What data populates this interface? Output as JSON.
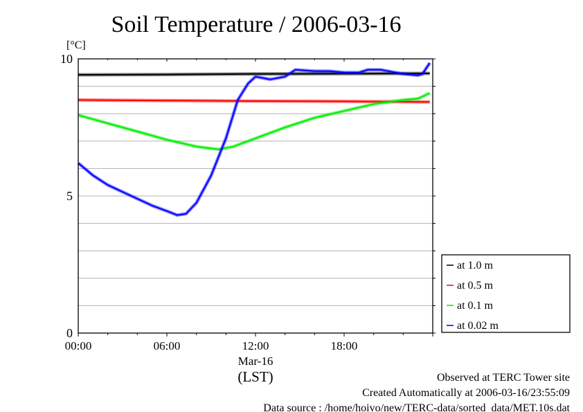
{
  "chart_data": {
    "type": "line",
    "title": "Soil Temperature / 2006-03-16",
    "ylabel": "[°C]",
    "xlabel": "(LST)",
    "date_label": "Mar-16",
    "xlim": [
      0,
      24
    ],
    "ylim": [
      0,
      10
    ],
    "x_ticks": [
      {
        "v": 0,
        "label": "00:00"
      },
      {
        "v": 6,
        "label": "06:00"
      },
      {
        "v": 12,
        "label": "12:00"
      },
      {
        "v": 18,
        "label": "18:00"
      }
    ],
    "y_ticks": [
      {
        "v": 0,
        "label": "0"
      },
      {
        "v": 5,
        "label": "5"
      },
      {
        "v": 10,
        "label": "10"
      }
    ],
    "grid": true,
    "legend_position": "right-bottom-outside",
    "series": [
      {
        "name": "at 1.0 m",
        "color": "#000000",
        "x": [
          0,
          6,
          12,
          18,
          23.8
        ],
        "y": [
          9.42,
          9.43,
          9.45,
          9.46,
          9.47
        ]
      },
      {
        "name": "at 0.5 m",
        "color": "#ff0000",
        "x": [
          0,
          6,
          12,
          18,
          23.8
        ],
        "y": [
          8.5,
          8.48,
          8.46,
          8.45,
          8.43
        ]
      },
      {
        "name": "at 0.1 m",
        "color": "#00ee00",
        "x": [
          0,
          2,
          4,
          6,
          8,
          9.5,
          10.5,
          12,
          14,
          16,
          18,
          20,
          22,
          23,
          23.8
        ],
        "y": [
          7.95,
          7.65,
          7.35,
          7.05,
          6.8,
          6.7,
          6.8,
          7.1,
          7.5,
          7.85,
          8.1,
          8.35,
          8.5,
          8.55,
          8.75
        ]
      },
      {
        "name": "at 0.02 m",
        "color": "#0000ff",
        "x": [
          0,
          1,
          2,
          3,
          4,
          5,
          6,
          6.7,
          7.3,
          8,
          9,
          10,
          10.8,
          11.5,
          12,
          13,
          14,
          14.7,
          16,
          17,
          18,
          19,
          19.6,
          20.5,
          22,
          23,
          23.3,
          23.8
        ],
        "y": [
          6.2,
          5.75,
          5.4,
          5.15,
          4.9,
          4.65,
          4.45,
          4.3,
          4.35,
          4.75,
          5.75,
          7.1,
          8.5,
          9.1,
          9.35,
          9.25,
          9.35,
          9.6,
          9.55,
          9.55,
          9.5,
          9.5,
          9.6,
          9.6,
          9.45,
          9.4,
          9.45,
          9.85
        ]
      }
    ]
  },
  "footer": {
    "line1": "Observed at TERC Tower site",
    "line2": "Created Automatically at 2006-03-16/23:55:09",
    "line3": "Data source : /home/hoivo/new/TERC-data/sorted_data/MET.10s.dat"
  }
}
